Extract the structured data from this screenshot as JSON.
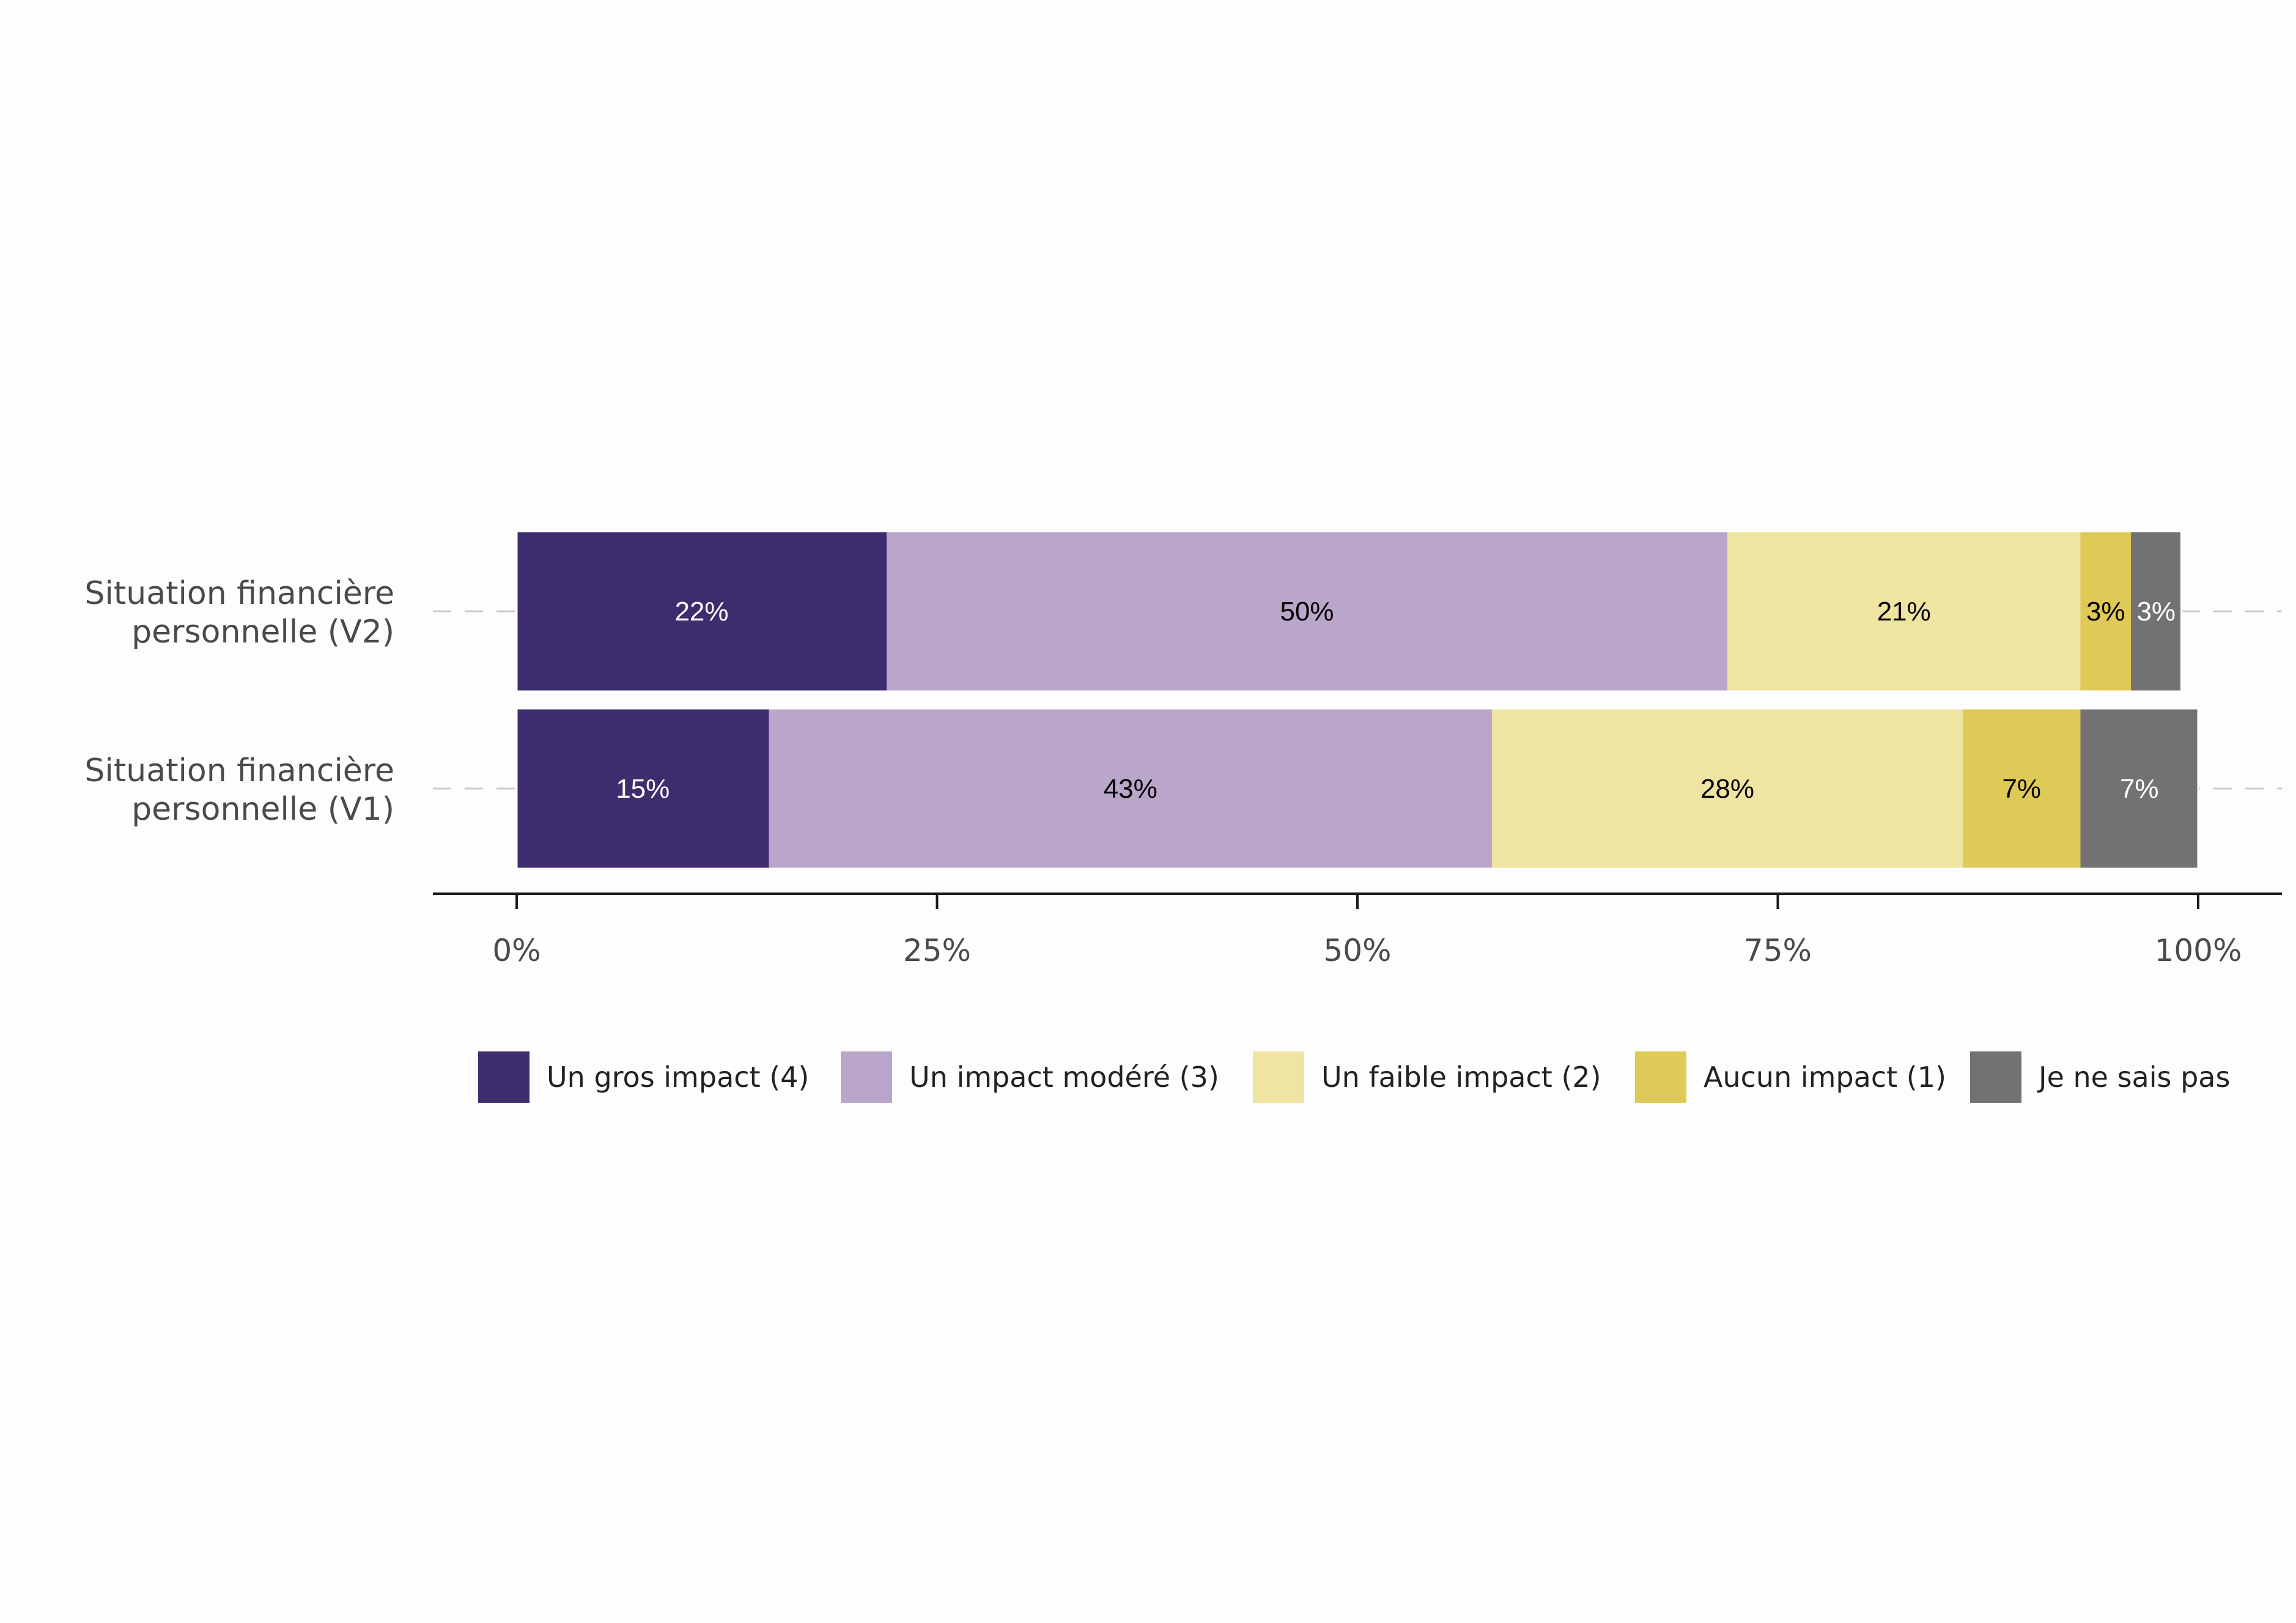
{
  "chart_data": {
    "type": "bar",
    "orientation": "horizontal",
    "stacked": true,
    "categories": [
      "Situation financière\npersonnelle (V2)",
      "Situation financière\npersonnelle (V1)"
    ],
    "series": [
      {
        "name": "Un gros impact (4)",
        "color": "#3d2d6e",
        "label_color": "#ffffff",
        "values": [
          22,
          15
        ],
        "labels": [
          "22%",
          "15%"
        ]
      },
      {
        "name": "Un impact modéré (3)",
        "color": "#b9a6ca",
        "label_color": "#000000",
        "values": [
          50,
          43
        ],
        "labels": [
          "50%",
          "43%"
        ]
      },
      {
        "name": "Un faible impact (2)",
        "color": "#efe4a1",
        "label_color": "#000000",
        "values": [
          21,
          28
        ],
        "labels": [
          "21%",
          "28%"
        ]
      },
      {
        "name": "Aucun impact (1)",
        "color": "#dfc957",
        "label_color": "#000000",
        "values": [
          3,
          7
        ],
        "labels": [
          "3%",
          "7%"
        ]
      },
      {
        "name": "Je ne sais pas",
        "color": "#737273",
        "label_color": "#ffffff",
        "values": [
          3,
          7
        ],
        "labels": [
          "3%",
          "7%"
        ]
      }
    ],
    "xlim": [
      0,
      100
    ],
    "xticks": [
      "0%",
      "25%",
      "50%",
      "75%",
      "100%"
    ],
    "legend_position": "bottom",
    "grid": false
  }
}
